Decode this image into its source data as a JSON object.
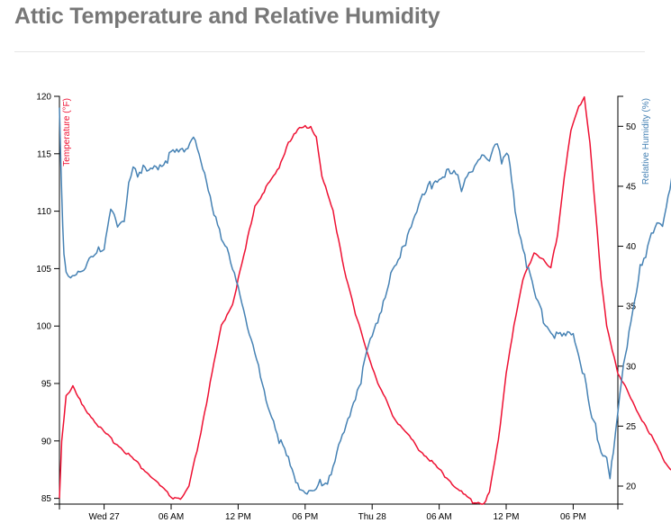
{
  "title": "Attic Temperature and Relative Humidity",
  "chart_data": {
    "type": "line",
    "x_ticks": [
      "Wed 27",
      "06 AM",
      "12 PM",
      "06 PM",
      "Thu 28",
      "06 AM",
      "12 PM",
      "06 PM"
    ],
    "x_range_hours": [
      -4,
      46
    ],
    "y_left": {
      "label": "Temperature (°F)",
      "ylim": [
        84.5,
        120
      ],
      "ticks": [
        85,
        90,
        95,
        100,
        105,
        110,
        115,
        120
      ],
      "color": "#ee1133"
    },
    "y_right": {
      "label": "Relative Humidity (%)",
      "ylim": [
        18.5,
        52.5
      ],
      "ticks": [
        20,
        25,
        30,
        35,
        40,
        45,
        50
      ],
      "color": "#4682b4"
    },
    "grid": false,
    "series": [
      {
        "name": "Temperature (°F)",
        "axis": "left",
        "color": "#ee1133",
        "points": [
          [
            -4,
            85
          ],
          [
            -3.8,
            90
          ],
          [
            -3.4,
            94
          ],
          [
            -2.8,
            94.7
          ],
          [
            -2,
            93.2
          ],
          [
            0,
            90.7
          ],
          [
            2,
            89
          ],
          [
            4,
            87.1
          ],
          [
            6,
            85.1
          ],
          [
            7,
            85
          ],
          [
            7.6,
            86
          ],
          [
            8.5,
            90
          ],
          [
            9.5,
            95
          ],
          [
            10.5,
            100
          ],
          [
            11.5,
            102
          ],
          [
            12.5,
            106
          ],
          [
            13.5,
            110.5
          ],
          [
            14.5,
            112
          ],
          [
            15.5,
            113.5
          ],
          [
            16.5,
            116
          ],
          [
            17.5,
            117.2
          ],
          [
            18.5,
            117.4
          ],
          [
            19,
            116.5
          ],
          [
            19.5,
            113
          ],
          [
            20.5,
            110
          ],
          [
            21.5,
            105
          ],
          [
            22.5,
            101
          ],
          [
            23.5,
            98
          ],
          [
            24.5,
            95
          ],
          [
            26,
            92
          ],
          [
            28,
            89.5
          ],
          [
            30,
            87.5
          ],
          [
            32,
            85.5
          ],
          [
            33,
            84.7
          ],
          [
            34,
            84.6
          ],
          [
            34.5,
            85.5
          ],
          [
            35.3,
            90
          ],
          [
            36,
            96
          ],
          [
            36.7,
            100
          ],
          [
            37.5,
            104
          ],
          [
            38.5,
            106.5
          ],
          [
            39.5,
            105.5
          ],
          [
            40,
            105
          ],
          [
            40.6,
            108
          ],
          [
            41.2,
            113
          ],
          [
            41.8,
            117
          ],
          [
            42.5,
            119
          ],
          [
            43,
            120
          ],
          [
            43.5,
            116
          ],
          [
            44,
            110
          ],
          [
            44.5,
            104
          ],
          [
            45,
            100
          ],
          [
            46,
            96
          ],
          [
            47.5,
            93
          ],
          [
            49,
            90.5
          ],
          [
            50,
            88.5
          ],
          [
            51,
            87.3
          ],
          [
            52,
            86.8
          ]
        ]
      },
      {
        "name": "Relative Humidity (%)",
        "axis": "right",
        "color": "#4682b4",
        "points": [
          [
            -4,
            52
          ],
          [
            -3.8,
            44
          ],
          [
            -3.6,
            39
          ],
          [
            -3.4,
            37.5
          ],
          [
            -3,
            37
          ],
          [
            -2.5,
            38
          ],
          [
            -2,
            38
          ],
          [
            -1,
            39
          ],
          [
            0,
            40
          ],
          [
            0.6,
            43.5
          ],
          [
            1.2,
            41.5
          ],
          [
            1.8,
            42
          ],
          [
            2.2,
            45.5
          ],
          [
            2.6,
            47
          ],
          [
            3,
            46
          ],
          [
            3.5,
            46.5
          ],
          [
            4,
            46
          ],
          [
            5,
            47
          ],
          [
            6,
            47.5
          ],
          [
            7,
            48
          ],
          [
            7.5,
            48.5
          ],
          [
            8,
            49.5
          ],
          [
            8.5,
            47.5
          ],
          [
            9.5,
            44
          ],
          [
            10.5,
            41
          ],
          [
            11.5,
            38
          ],
          [
            12.5,
            35
          ],
          [
            13,
            33
          ],
          [
            13.5,
            31
          ],
          [
            14,
            29
          ],
          [
            15,
            26
          ],
          [
            16,
            23
          ],
          [
            17,
            21
          ],
          [
            17.5,
            20
          ],
          [
            18,
            19.5
          ],
          [
            19,
            19.5
          ],
          [
            19.5,
            20.5
          ],
          [
            20,
            20.5
          ],
          [
            21,
            23
          ],
          [
            22,
            26
          ],
          [
            23,
            29
          ],
          [
            23.5,
            31
          ],
          [
            24.5,
            34
          ],
          [
            25.5,
            37
          ],
          [
            26.5,
            39
          ],
          [
            27.5,
            42
          ],
          [
            28.5,
            44
          ],
          [
            29.5,
            45.5
          ],
          [
            30.5,
            46
          ],
          [
            31.5,
            46
          ],
          [
            32,
            45
          ],
          [
            32.5,
            46
          ],
          [
            33.5,
            47
          ],
          [
            34.5,
            47.5
          ],
          [
            35.2,
            49
          ],
          [
            35.6,
            47
          ],
          [
            36.2,
            47.5
          ],
          [
            36.8,
            43
          ],
          [
            37.5,
            40
          ],
          [
            38.5,
            36
          ],
          [
            39.5,
            33.5
          ],
          [
            40.5,
            32.5
          ],
          [
            41.5,
            32.5
          ],
          [
            42,
            33
          ],
          [
            42.5,
            31
          ],
          [
            43,
            29
          ],
          [
            43.5,
            26
          ],
          [
            44,
            25
          ],
          [
            44.5,
            23
          ],
          [
            45,
            22.5
          ],
          [
            45.3,
            21
          ],
          [
            45.6,
            22.5
          ],
          [
            46,
            26
          ],
          [
            46.5,
            30
          ],
          [
            47,
            33
          ],
          [
            48,
            38
          ],
          [
            48.5,
            39
          ],
          [
            49,
            41
          ],
          [
            49.5,
            42
          ],
          [
            50,
            42
          ],
          [
            50.5,
            44
          ],
          [
            51,
            46
          ],
          [
            51.3,
            48
          ],
          [
            51.6,
            50
          ],
          [
            52,
            46
          ]
        ]
      }
    ]
  }
}
